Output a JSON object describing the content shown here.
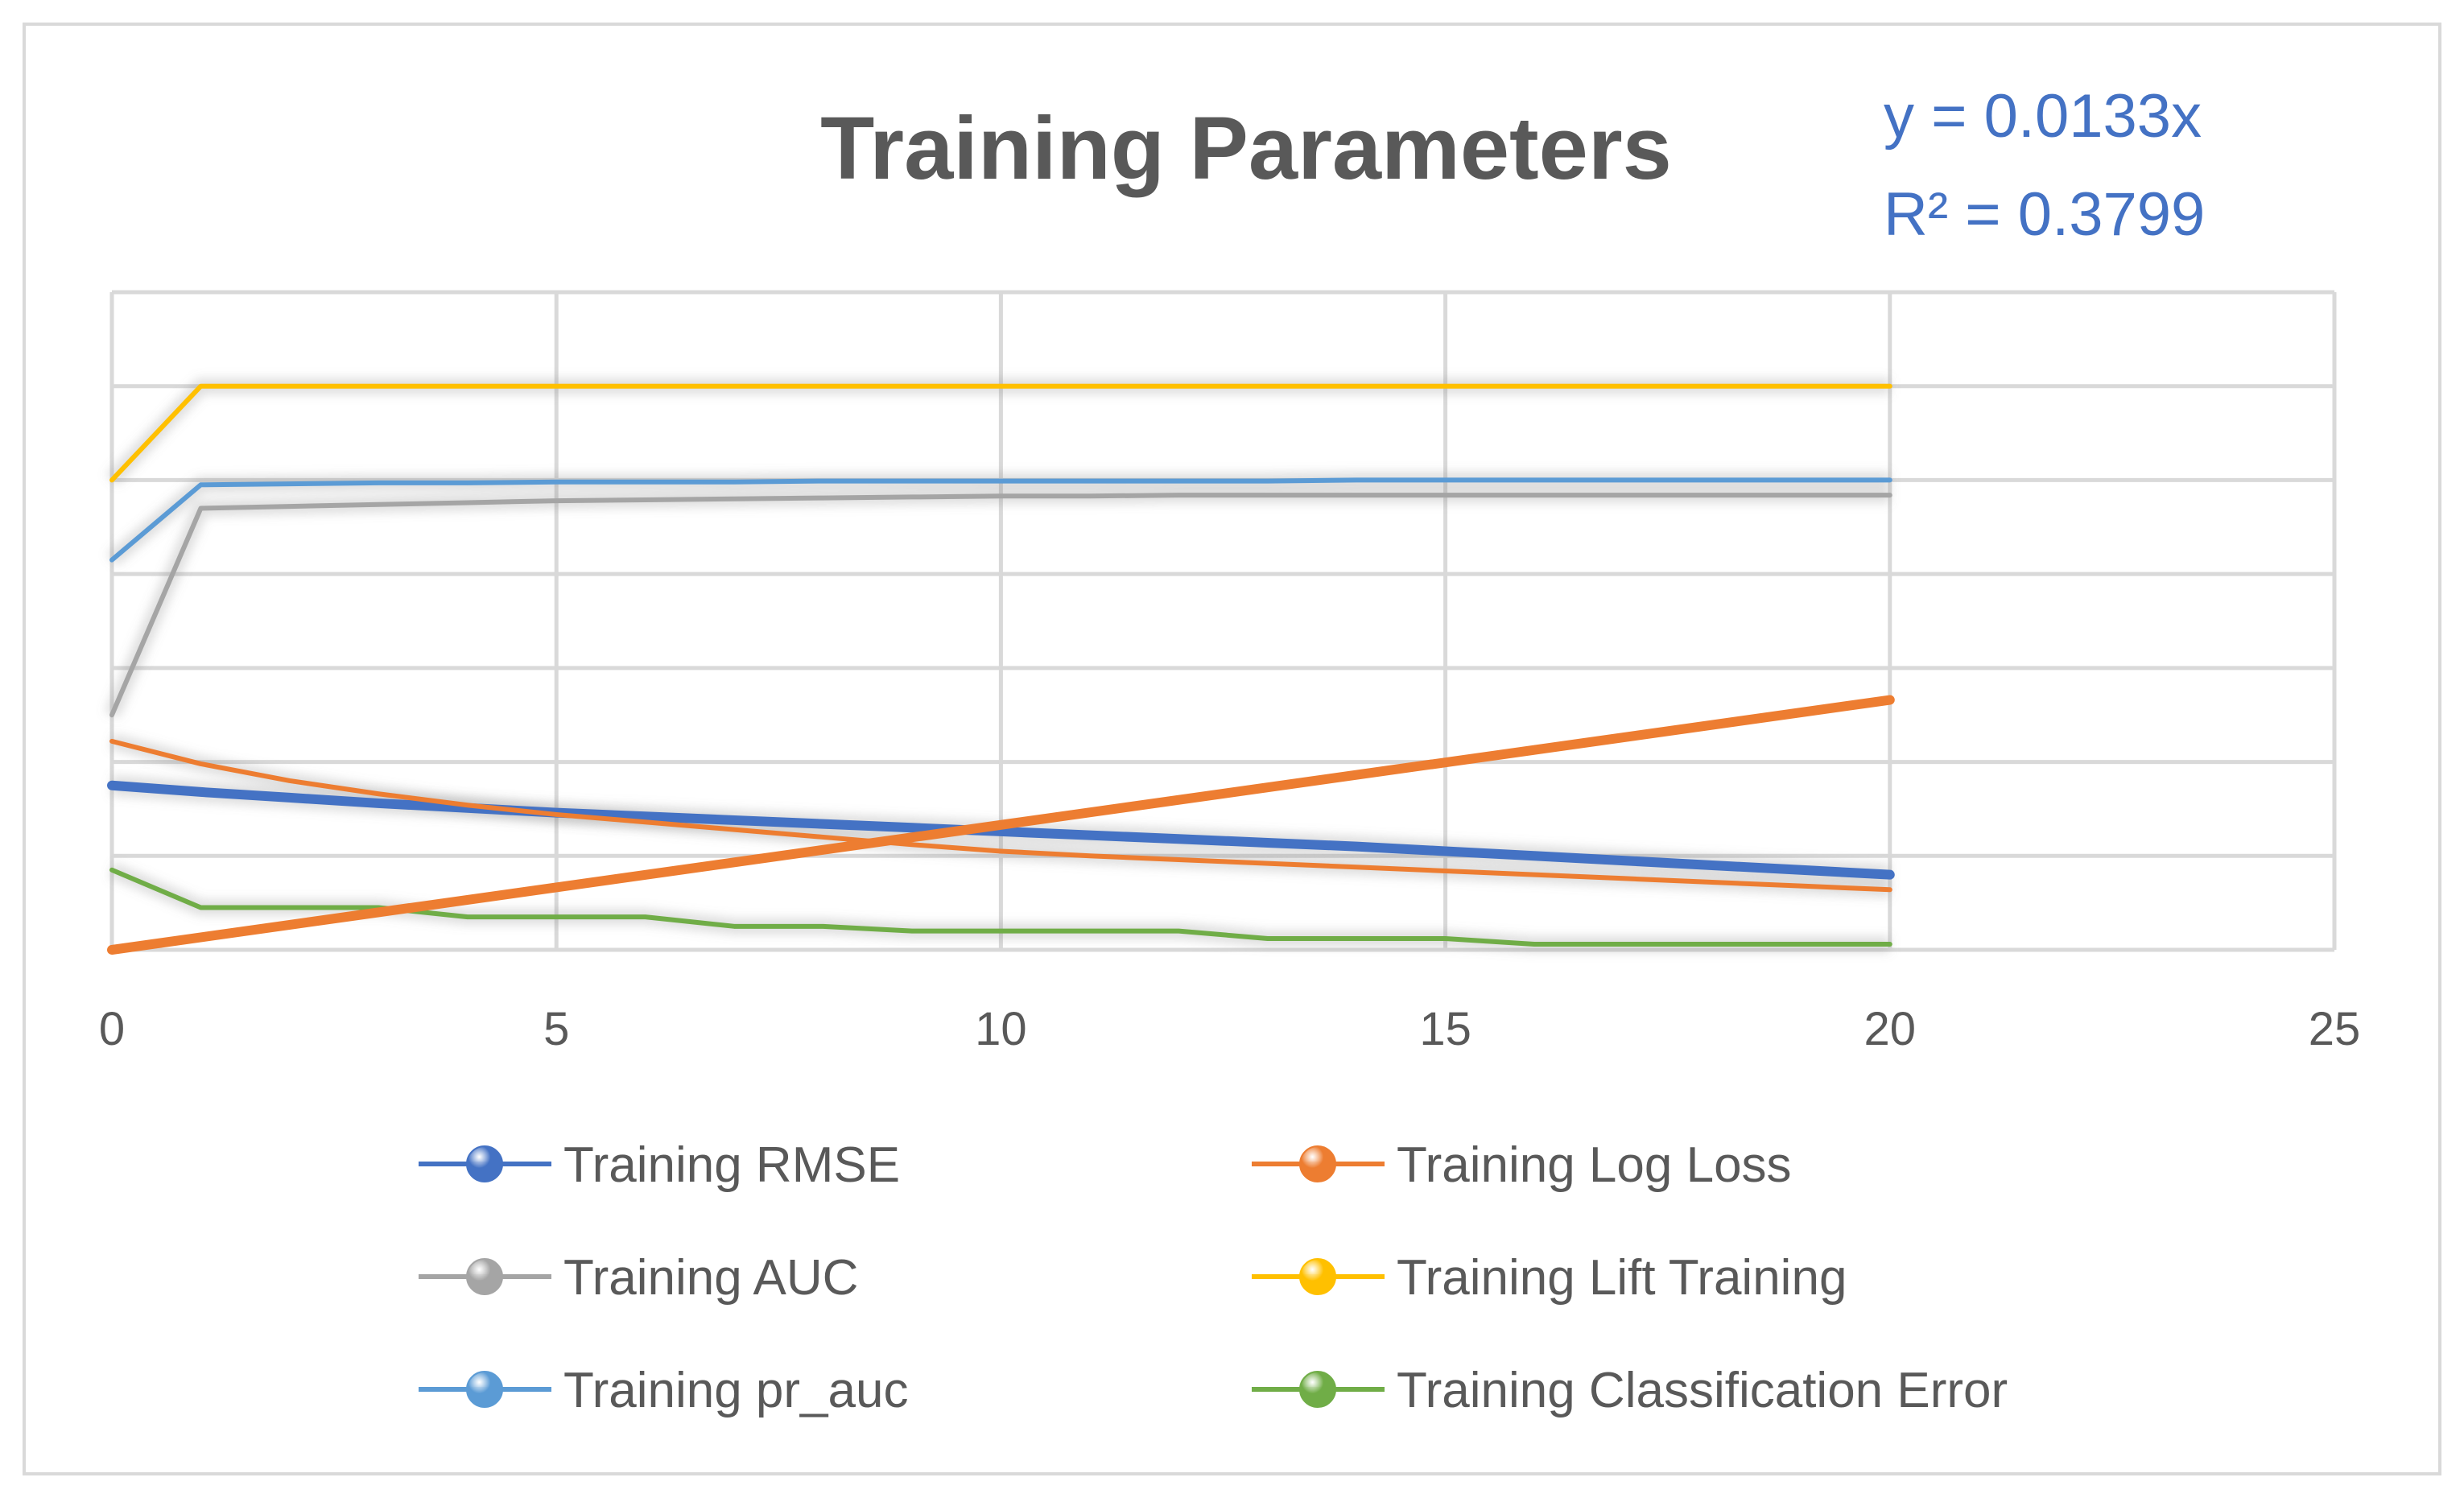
{
  "chart_data": {
    "type": "line",
    "title": "Training Parameters",
    "trendline": {
      "equation": "y = 0.0133x",
      "r_squared": "R² = 0.3799",
      "slope": 0.0133,
      "color": "#ed7d31"
    },
    "xlim": [
      0,
      25
    ],
    "x_ticks": [
      0,
      5,
      10,
      15,
      20,
      25
    ],
    "x_tick_labels": [
      "0",
      "5",
      "10",
      "15",
      "20",
      "25"
    ],
    "ylim": [
      0,
      0.7
    ],
    "y_grid_step": 0.1,
    "grid": true,
    "legend_position": "bottom",
    "series": [
      {
        "name": "Training RMSE",
        "color": "#4472c4",
        "x": [
          0,
          1,
          2,
          3,
          4,
          5,
          6,
          7,
          8,
          9,
          10,
          11,
          12,
          13,
          14,
          15,
          16,
          17,
          18,
          19,
          20
        ],
        "values": [
          0.175,
          0.168,
          0.162,
          0.156,
          0.151,
          0.146,
          0.142,
          0.138,
          0.134,
          0.13,
          0.126,
          0.122,
          0.118,
          0.114,
          0.11,
          0.105,
          0.1,
          0.095,
          0.09,
          0.085,
          0.08
        ]
      },
      {
        "name": "Training Log Loss",
        "color": "#ed7d31",
        "x": [
          0,
          1,
          2,
          3,
          4,
          5,
          6,
          7,
          8,
          9,
          10,
          11,
          12,
          13,
          14,
          15,
          16,
          17,
          18,
          19,
          20
        ],
        "values": [
          0.222,
          0.198,
          0.18,
          0.166,
          0.154,
          0.144,
          0.136,
          0.128,
          0.12,
          0.112,
          0.105,
          0.1,
          0.096,
          0.092,
          0.088,
          0.084,
          0.08,
          0.076,
          0.072,
          0.068,
          0.064
        ]
      },
      {
        "name": "Training AUC",
        "color": "#a5a5a5",
        "x": [
          0,
          1,
          2,
          3,
          4,
          5,
          6,
          7,
          8,
          9,
          10,
          11,
          12,
          13,
          14,
          15,
          16,
          17,
          18,
          19,
          20
        ],
        "values": [
          0.25,
          0.47,
          0.472,
          0.474,
          0.476,
          0.478,
          0.479,
          0.48,
          0.481,
          0.482,
          0.483,
          0.483,
          0.484,
          0.484,
          0.484,
          0.484,
          0.484,
          0.484,
          0.484,
          0.484,
          0.484
        ]
      },
      {
        "name": "Training Lift Training",
        "color": "#ffc000",
        "x": [
          0,
          1,
          2,
          3,
          4,
          5,
          6,
          7,
          8,
          9,
          10,
          11,
          12,
          13,
          14,
          15,
          16,
          17,
          18,
          19,
          20
        ],
        "values": [
          0.5,
          0.6,
          0.6,
          0.6,
          0.6,
          0.6,
          0.6,
          0.6,
          0.6,
          0.6,
          0.6,
          0.6,
          0.6,
          0.6,
          0.6,
          0.6,
          0.6,
          0.6,
          0.6,
          0.6,
          0.6
        ]
      },
      {
        "name": "Training pr_auc",
        "color": "#5b9bd5",
        "x": [
          0,
          1,
          2,
          3,
          4,
          5,
          6,
          7,
          8,
          9,
          10,
          11,
          12,
          13,
          14,
          15,
          16,
          17,
          18,
          19,
          20
        ],
        "values": [
          0.415,
          0.495,
          0.496,
          0.497,
          0.497,
          0.498,
          0.498,
          0.498,
          0.499,
          0.499,
          0.499,
          0.499,
          0.499,
          0.499,
          0.5,
          0.5,
          0.5,
          0.5,
          0.5,
          0.5,
          0.5
        ]
      },
      {
        "name": "Training Classification Error",
        "color": "#70ad47",
        "x": [
          0,
          1,
          2,
          3,
          4,
          5,
          6,
          7,
          8,
          9,
          10,
          11,
          12,
          13,
          14,
          15,
          16,
          17,
          18,
          19,
          20
        ],
        "values": [
          0.085,
          0.045,
          0.045,
          0.045,
          0.035,
          0.035,
          0.035,
          0.025,
          0.025,
          0.02,
          0.02,
          0.02,
          0.02,
          0.012,
          0.012,
          0.012,
          0.006,
          0.006,
          0.006,
          0.006,
          0.006
        ]
      }
    ]
  }
}
